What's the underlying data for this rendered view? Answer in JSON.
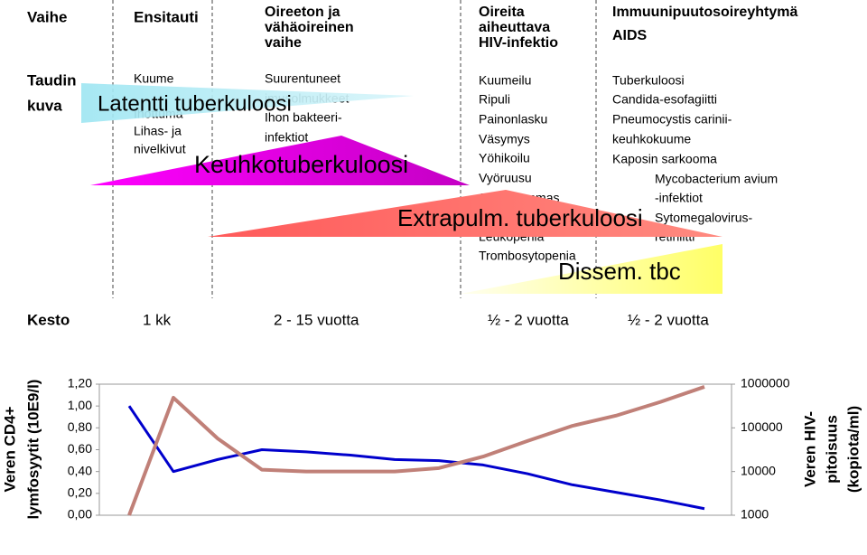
{
  "table": {
    "headers": [
      [
        "Vaihe"
      ],
      [
        "Ensitauti"
      ],
      [
        "Oireeton ja",
        "vähäoireinen",
        "vaihe"
      ],
      [
        "Oireita",
        "aiheuttava",
        "HIV-infektio"
      ],
      [
        "Immuunipuutosoireyhtymä",
        "AIDS"
      ]
    ],
    "row_label": [
      "Taudin",
      "kuva"
    ],
    "symptoms": [
      [
        "Kuume",
        "Ihottuma",
        "Lihas- ja",
        "nivelkivut"
      ],
      [
        "Suurentuneet",
        "imusolmukkeet",
        "Ihon bakteeri-",
        "infektiot"
      ],
      [
        "Kuumeilu",
        "Ripuli",
        "Painonlasku",
        "Väsymys",
        "Yöhikoilu",
        "Vyöruusu",
        "Suun sammas",
        "Leukopenia",
        "Trombosytopenia"
      ],
      [
        "Tuberkuloosi",
        "Candida-esofagiitti",
        "Pneumocystis carinii-",
        "keuhkokuume",
        "Kaposin sarkooma",
        "Mycobacterium avium",
        "-infektiot",
        "Sytomegalovirus-",
        "retiniitti"
      ]
    ],
    "duration_label": "Kesto",
    "durations": [
      "1 kk",
      "2 - 15 vuotta",
      "½ - 2 vuotta",
      "½ - 2 vuotta"
    ]
  },
  "overlays": [
    "Latentti tuberkuloosi",
    "Keuhkotuberkuloosi",
    "Extrapulm. tuberkuloosi",
    "Dissem. tbc"
  ],
  "chart_data": {
    "type": "line",
    "ylabel": [
      "Veren CD4+",
      "lymfosyytit (10E9/l)"
    ],
    "y2label": [
      "Veren HIV-",
      "pitoisuus",
      "(kopiota/ml)"
    ],
    "categories": [
      null,
      null,
      null,
      null,
      null,
      null,
      null,
      null,
      null,
      null,
      null,
      null,
      null,
      null
    ],
    "series": [
      {
        "color": "#0000cc",
        "values": [
          1.0,
          0.4,
          0.51,
          0.6,
          0.58,
          0.55,
          0.51,
          0.5,
          0.46,
          0.38,
          0.28,
          0.21,
          0.14,
          0.06
        ]
      },
      {
        "color": "#c08078",
        "axis": "y2",
        "values": [
          1000,
          490000,
          57000,
          11000,
          10000,
          10000,
          10000,
          12000,
          22000,
          50000,
          110000,
          190000,
          390000,
          870000
        ]
      }
    ],
    "ylim": [
      0,
      1.2
    ],
    "yticks": [
      {
        "value": 0,
        "label": "0,00"
      },
      {
        "value": 0.2,
        "label": "0,20"
      },
      {
        "value": 0.4,
        "label": "0,40"
      },
      {
        "value": 0.6,
        "label": "0,60"
      },
      {
        "value": 0.8,
        "label": "0,80"
      },
      {
        "value": 1.0,
        "label": "1,00"
      },
      {
        "value": 1.2,
        "label": "1,20"
      }
    ],
    "y2lim": [
      1000,
      1000000
    ],
    "y2ticks": [
      1000,
      10000,
      100000,
      1000000
    ],
    "y2log": true
  }
}
